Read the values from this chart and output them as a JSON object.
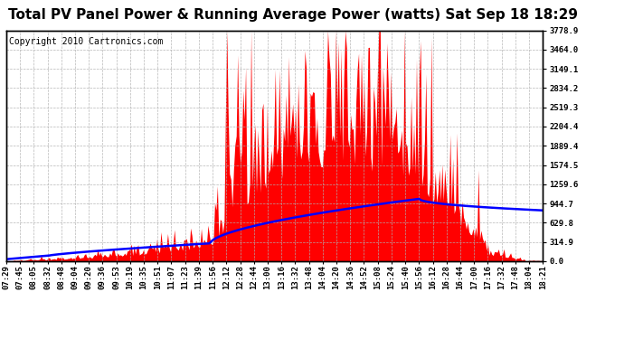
{
  "title": "Total PV Panel Power & Running Average Power (watts) Sat Sep 18 18:29",
  "copyright": "Copyright 2010 Cartronics.com",
  "ylabel_right_ticks": [
    0.0,
    314.9,
    629.8,
    944.7,
    1259.6,
    1574.5,
    1889.4,
    2204.4,
    2519.3,
    2834.2,
    3149.1,
    3464.0,
    3778.9
  ],
  "ymax": 3778.9,
  "bg_color": "#ffffff",
  "plot_bg_color": "#ffffff",
  "bar_color": "#ff0000",
  "line_color": "#0000ff",
  "grid_color": "#b0b0b0",
  "title_fontsize": 11,
  "copyright_fontsize": 7,
  "tick_fontsize": 6.5,
  "time_labels": [
    "07:29",
    "07:45",
    "08:05",
    "08:32",
    "08:48",
    "09:04",
    "09:20",
    "09:36",
    "09:53",
    "10:19",
    "10:35",
    "10:51",
    "11:07",
    "11:23",
    "11:39",
    "11:56",
    "12:12",
    "12:28",
    "12:44",
    "13:00",
    "13:16",
    "13:32",
    "13:48",
    "14:04",
    "14:20",
    "14:36",
    "14:52",
    "15:08",
    "15:24",
    "15:40",
    "15:56",
    "16:12",
    "16:28",
    "16:44",
    "17:00",
    "17:16",
    "17:32",
    "17:48",
    "18:04",
    "18:21"
  ]
}
